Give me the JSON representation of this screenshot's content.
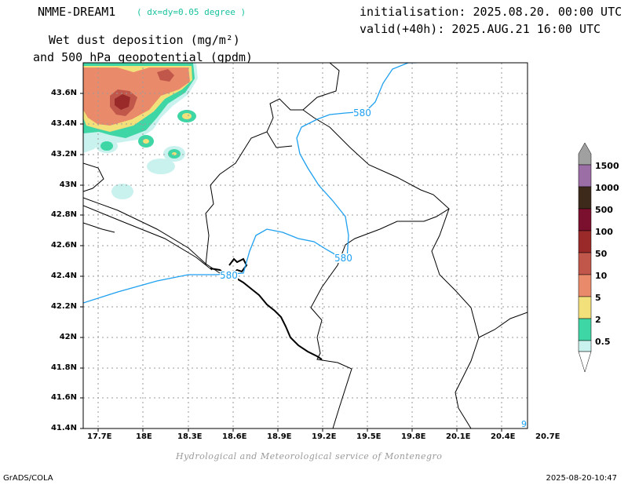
{
  "header": {
    "model": "NMME-DREAM1",
    "resolution": "( dx=dy=0.05 degree )",
    "initialisation": "initialisation: 2025.08.20. 00:00 UTC",
    "valid": "valid(+40h): 2025.AUG.21 16:00 UTC",
    "field_line1": "Wet dust deposition (mg/m²)",
    "field_line2": "and 500 hPa geopotential (gpdm)"
  },
  "axes": {
    "y_ticks": [
      "43.6N",
      "43.4N",
      "43.2N",
      "43N",
      "42.8N",
      "42.6N",
      "42.4N",
      "42.2N",
      "42N",
      "41.8N",
      "41.6N",
      "41.4N"
    ],
    "x_ticks": [
      "17.7E",
      "18E",
      "18.3E",
      "18.6E",
      "18.9E",
      "19.2E",
      "19.5E",
      "19.8E",
      "20.1E",
      "20.4E",
      "20.7E"
    ]
  },
  "contours": {
    "labels": [
      "580",
      "580",
      "580"
    ],
    "edge_label": "9"
  },
  "colorbar": {
    "levels": [
      "1500",
      "1000",
      "500",
      "100",
      "50",
      "10",
      "5",
      "2",
      "0.5"
    ],
    "colors": [
      "#9b6ea5",
      "#3d2a1a",
      "#7a0f2e",
      "#9a2a2a",
      "#c0574a",
      "#e98a6a",
      "#f2e07a",
      "#3fd6a6",
      "#c9f2ee"
    ],
    "top_color": "#a0a0a0"
  },
  "credit": "Hydrological and Meteorological service of Montenegro",
  "footer": {
    "left": "GrADS/COLA",
    "right": "2025-08-20-10:47"
  }
}
